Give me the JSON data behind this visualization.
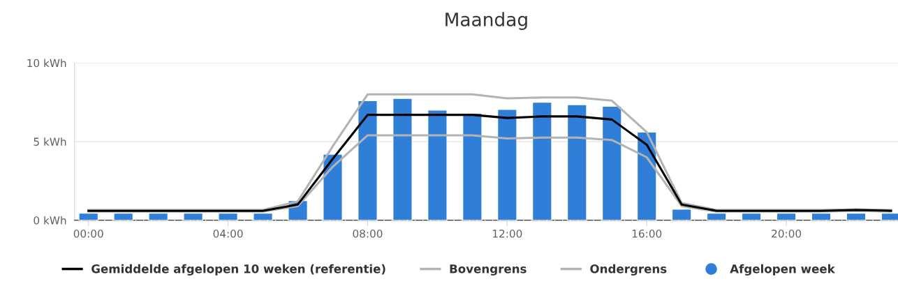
{
  "chart_data": {
    "type": "bar",
    "title": "Maandag",
    "x": [
      0,
      1,
      2,
      3,
      4,
      5,
      6,
      7,
      8,
      9,
      10,
      11,
      12,
      13,
      14,
      15,
      16,
      17,
      18,
      19,
      20,
      21,
      22,
      23
    ],
    "series": [
      {
        "name": "Gemiddelde afgelopen 10 weken (referentie)",
        "type": "line",
        "color": "#000000",
        "values": [
          0.6,
          0.6,
          0.6,
          0.6,
          0.6,
          0.6,
          1.0,
          3.9,
          6.7,
          6.7,
          6.7,
          6.7,
          6.5,
          6.6,
          6.6,
          6.4,
          4.8,
          1.0,
          0.6,
          0.6,
          0.6,
          0.6,
          0.65,
          0.6
        ]
      },
      {
        "name": "Bovengrens",
        "type": "line",
        "color": "#b3b3b3",
        "values": [
          0.65,
          0.65,
          0.65,
          0.65,
          0.65,
          0.65,
          1.2,
          4.7,
          8.0,
          8.0,
          8.0,
          8.0,
          7.75,
          7.8,
          7.8,
          7.6,
          5.6,
          1.1,
          0.65,
          0.65,
          0.65,
          0.65,
          0.7,
          0.65
        ]
      },
      {
        "name": "Ondergrens",
        "type": "line",
        "color": "#b3b3b3",
        "values": [
          0.55,
          0.55,
          0.55,
          0.55,
          0.55,
          0.55,
          0.9,
          3.4,
          5.4,
          5.4,
          5.4,
          5.4,
          5.2,
          5.25,
          5.25,
          5.1,
          4.0,
          0.9,
          0.55,
          0.55,
          0.55,
          0.55,
          0.6,
          0.55
        ]
      },
      {
        "name": "Afgelopen week",
        "color": "#2f7ed8",
        "values": [
          0.45,
          0.45,
          0.45,
          0.45,
          0.45,
          0.45,
          1.25,
          4.2,
          7.6,
          7.75,
          7.0,
          6.8,
          7.05,
          7.5,
          7.35,
          7.25,
          5.6,
          0.7,
          0.45,
          0.45,
          0.45,
          0.45,
          0.45,
          0.45
        ]
      }
    ],
    "xlim": [
      -0.4,
      23.2
    ],
    "xticks": [
      {
        "value": 0,
        "label": "00:00"
      },
      {
        "value": 4,
        "label": "04:00"
      },
      {
        "value": 8,
        "label": "08:00"
      },
      {
        "value": 12,
        "label": "12:00"
      },
      {
        "value": 16,
        "label": "16:00"
      },
      {
        "value": 20,
        "label": "20:00"
      }
    ],
    "ylim": [
      0,
      10
    ],
    "yticks": [
      {
        "value": 0,
        "label": "0 kWh"
      },
      {
        "value": 5,
        "label": "5 kWh"
      },
      {
        "value": 10,
        "label": "10 kWh"
      }
    ],
    "grid": "y",
    "legend": "bottom"
  }
}
